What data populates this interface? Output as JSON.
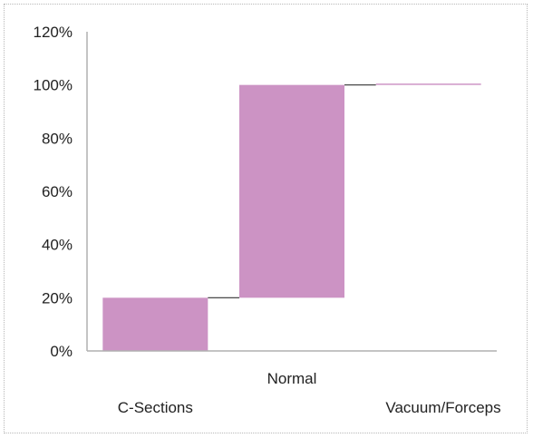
{
  "chart_data": {
    "type": "bar",
    "subtype": "waterfall",
    "categories": [
      "C-Sections",
      "Normal",
      "Vacuum/Forceps"
    ],
    "series": [
      {
        "values": [
          0.2,
          0.8,
          0.005
        ]
      }
    ],
    "ylim": [
      0,
      1.2
    ],
    "yticks": [
      "0%",
      "20%",
      "40%",
      "60%",
      "80%",
      "100%",
      "120%"
    ],
    "grid": false,
    "legend": "none",
    "colors": {
      "bar": "#cc93c4",
      "connector": "#333333",
      "axis": "#b0b0b0"
    }
  }
}
